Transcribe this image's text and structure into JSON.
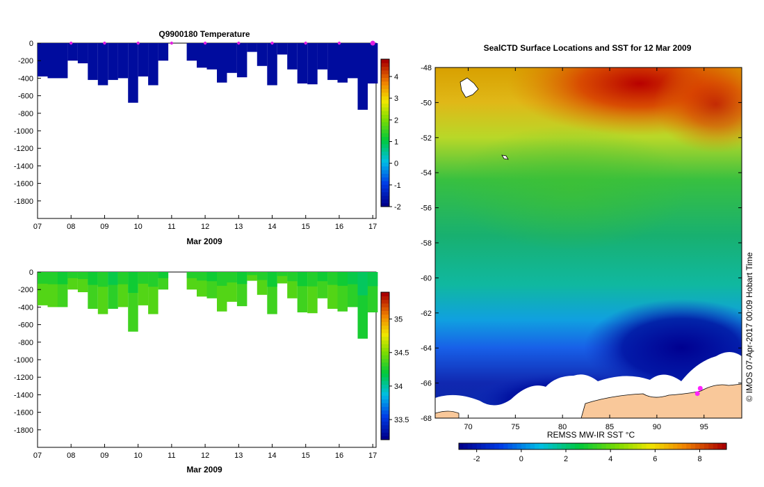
{
  "chart_data": [
    {
      "type": "heatmap",
      "title": "Q9900180  Temperature",
      "xlabel": "Mar 2009",
      "ylabel": "",
      "x_ticks": [
        "07",
        "08",
        "09",
        "10",
        "11",
        "12",
        "13",
        "14",
        "15",
        "16",
        "17"
      ],
      "y_ticks": [
        "0",
        "-200",
        "-400",
        "-600",
        "-800",
        "-1000",
        "-1200",
        "-1400",
        "-1600",
        "-1800"
      ],
      "xlim": [
        7,
        17.1
      ],
      "ylim": [
        -2000,
        0
      ],
      "colorbar": {
        "ticks": [
          "-2",
          "-1",
          "0",
          "1",
          "2",
          "3",
          "4"
        ],
        "range": [
          -2,
          4.8
        ]
      },
      "profile_times": [
        7.15,
        7.45,
        7.75,
        8.05,
        8.35,
        8.65,
        8.95,
        9.25,
        9.55,
        9.85,
        10.15,
        10.45,
        10.75,
        11.6,
        11.9,
        12.2,
        12.5,
        12.8,
        13.1,
        13.4,
        13.7,
        14.0,
        14.3,
        14.6,
        14.9,
        15.2,
        15.5,
        15.8,
        16.1,
        16.4,
        16.7,
        17.0
      ],
      "profile_depths": [
        -380,
        -400,
        -400,
        -200,
        -230,
        -420,
        -480,
        -420,
        -400,
        -680,
        -380,
        -480,
        -200,
        -200,
        -280,
        -300,
        -450,
        -340,
        -390,
        -100,
        -260,
        -480,
        -130,
        -300,
        -460,
        -470,
        -300,
        -420,
        -450,
        -400,
        -760,
        -460
      ],
      "profile_values": [
        -1.8,
        -1.8,
        -1.8,
        -1.8,
        -1.8,
        -1.8,
        -1.8,
        -1.8,
        -1.8,
        -1.8,
        -1.8,
        -1.8,
        -1.8,
        -1.8,
        -1.8,
        -1.8,
        -1.8,
        -1.8,
        -1.8,
        -1.8,
        -1.8,
        -1.8,
        -1.8,
        -1.8,
        -1.8,
        -1.8,
        -1.8,
        -1.8,
        -1.8,
        -1.8,
        -1.8,
        -1.8
      ],
      "day_markers": [
        8,
        9,
        10,
        11,
        12,
        13,
        14,
        15,
        16,
        17
      ],
      "colors": {
        "cold": "#000080",
        "marker": "#e020e0"
      }
    },
    {
      "type": "heatmap",
      "title": "",
      "xlabel": "Mar 2009",
      "ylabel": "",
      "x_ticks": [
        "07",
        "08",
        "09",
        "10",
        "11",
        "12",
        "13",
        "14",
        "15",
        "16",
        "17"
      ],
      "y_ticks": [
        "0",
        "-200",
        "-400",
        "-600",
        "-800",
        "-1000",
        "-1200",
        "-1400",
        "-1600",
        "-1800"
      ],
      "xlim": [
        7,
        17.1
      ],
      "ylim": [
        -2000,
        0
      ],
      "colorbar": {
        "ticks": [
          "33.5",
          "34",
          "34.5",
          "35"
        ],
        "range": [
          33.2,
          35.4
        ]
      },
      "profile_times": [
        7.15,
        7.45,
        7.75,
        8.05,
        8.35,
        8.65,
        8.95,
        9.25,
        9.55,
        9.85,
        10.15,
        10.45,
        10.75,
        11.6,
        11.9,
        12.2,
        12.5,
        12.8,
        13.1,
        13.4,
        13.7,
        14.0,
        14.3,
        14.6,
        14.9,
        15.2,
        15.5,
        15.8,
        16.1,
        16.4,
        16.7,
        17.0
      ],
      "profile_depths": [
        -380,
        -400,
        -400,
        -200,
        -230,
        -420,
        -480,
        -420,
        -400,
        -680,
        -380,
        -480,
        -200,
        -200,
        -280,
        -300,
        -450,
        -340,
        -390,
        -100,
        -260,
        -480,
        -130,
        -300,
        -460,
        -470,
        -300,
        -420,
        -450,
        -400,
        -760,
        -460
      ],
      "profile_values": [
        34.4,
        34.4,
        34.35,
        34.4,
        34.4,
        34.35,
        34.4,
        34.3,
        34.4,
        34.35,
        34.4,
        34.4,
        34.35,
        34.4,
        34.4,
        34.35,
        34.4,
        34.4,
        34.35,
        34.4,
        34.4,
        34.35,
        34.4,
        34.4,
        34.35,
        34.4,
        34.35,
        34.4,
        34.35,
        34.3,
        34.25,
        34.3
      ]
    },
    {
      "type": "heatmap",
      "title": "SealCTD Surface Locations and SST for 12 Mar 2009",
      "xlabel": "",
      "ylabel": "",
      "x_ticks": [
        "70",
        "75",
        "80",
        "85",
        "90",
        "95"
      ],
      "y_ticks": [
        "-48",
        "-50",
        "-52",
        "-54",
        "-56",
        "-58",
        "-60",
        "-62",
        "-64",
        "-66",
        "-68"
      ],
      "xlim": [
        66.5,
        99
      ],
      "ylim": [
        -68,
        -48
      ],
      "colorbar": {
        "label": "REMSS MW-IR SST °C",
        "ticks": [
          "-2",
          "0",
          "2",
          "4",
          "6",
          "8"
        ],
        "range": [
          -2.8,
          9.2
        ]
      },
      "seal_locations": [
        {
          "lon": 94.6,
          "lat": -66.3
        },
        {
          "lon": 94.3,
          "lat": -66.6
        }
      ],
      "credit": "© IMOS 07-Apr-2017 00:09 Hobart Time",
      "colors": {
        "land": "#f9c89a",
        "ice": "#ffffff",
        "marker": "#ff22ff"
      }
    }
  ]
}
